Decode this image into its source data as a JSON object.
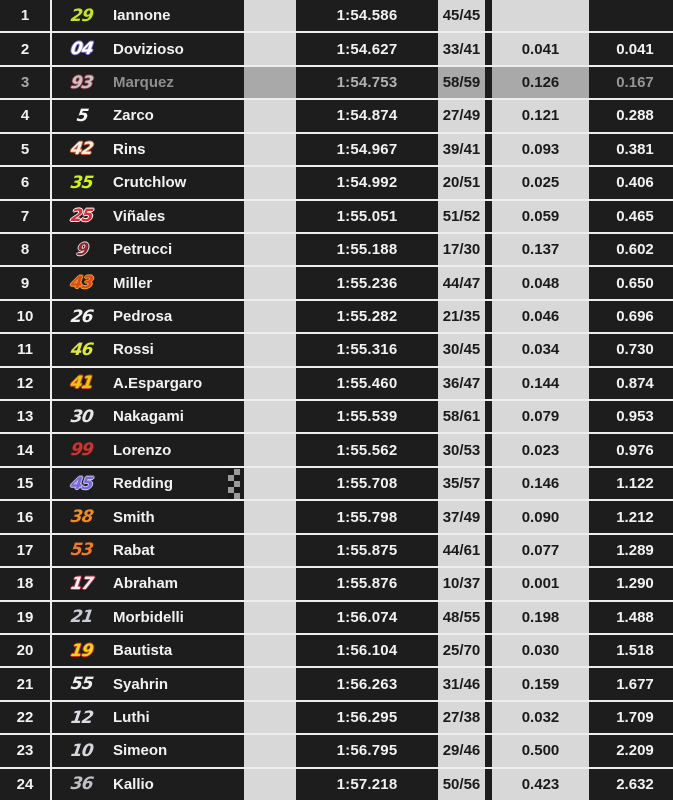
{
  "table": {
    "description": "MotoGP live timing classification",
    "columns": [
      "position",
      "number",
      "rider",
      "team_color",
      "best_time",
      "laps",
      "gap_previous",
      "gap_leader"
    ],
    "selected_rider": "Marquez",
    "colors": {
      "row_background": "#1d1d1d",
      "light_cell": "#d8d8d8",
      "selected_light_cell": "#a9a9a9",
      "row_border": "#ededed",
      "text_light": "#f2f2f2",
      "text_dark": "#1a1a1a",
      "selected_text": "#969696"
    },
    "icons": {
      "finish_flag": "checkered-flag-icon"
    },
    "rows": [
      {
        "pos": "1",
        "num": "29",
        "num_color": "#c8e22c",
        "num_outline": "",
        "rider": "Iannone",
        "time": "1:54.586",
        "laps": "45/45",
        "gap_prev": "",
        "gap_lead": "",
        "selected": false,
        "finish_flag": false
      },
      {
        "pos": "2",
        "num": "04",
        "num_color": "#ffffff",
        "num_outline": "#8a70e8",
        "rider": "Dovizioso",
        "time": "1:54.627",
        "laps": "33/41",
        "gap_prev": "0.041",
        "gap_lead": "0.041",
        "selected": false,
        "finish_flag": false
      },
      {
        "pos": "3",
        "num": "93",
        "num_color": "#c9c2c2",
        "num_outline": "#8d3a44",
        "rider": "Marquez",
        "time": "1:54.753",
        "laps": "58/59",
        "gap_prev": "0.126",
        "gap_lead": "0.167",
        "selected": true,
        "finish_flag": false
      },
      {
        "pos": "4",
        "num": "5",
        "num_color": "#f5f5f5",
        "num_outline": "",
        "rider": "Zarco",
        "time": "1:54.874",
        "laps": "27/49",
        "gap_prev": "0.121",
        "gap_lead": "0.288",
        "selected": false,
        "finish_flag": false
      },
      {
        "pos": "5",
        "num": "42",
        "num_color": "#f7ece4",
        "num_outline": "#c8562a",
        "rider": "Rins",
        "time": "1:54.967",
        "laps": "39/41",
        "gap_prev": "0.093",
        "gap_lead": "0.381",
        "selected": false,
        "finish_flag": false
      },
      {
        "pos": "6",
        "num": "35",
        "num_color": "#cdf312",
        "num_outline": "",
        "rider": "Crutchlow",
        "time": "1:54.992",
        "laps": "20/51",
        "gap_prev": "0.025",
        "gap_lead": "0.406",
        "selected": false,
        "finish_flag": false
      },
      {
        "pos": "7",
        "num": "25",
        "num_color": "#d93038",
        "num_outline": "#ffffff",
        "rider": "Viñales",
        "time": "1:55.051",
        "laps": "51/52",
        "gap_prev": "0.059",
        "gap_lead": "0.465",
        "selected": false,
        "finish_flag": false
      },
      {
        "pos": "8",
        "num": "9",
        "num_color": "#8f2430",
        "num_outline": "#e0e0e0",
        "rider": "Petrucci",
        "time": "1:55.188",
        "laps": "17/30",
        "gap_prev": "0.137",
        "gap_lead": "0.602",
        "selected": false,
        "finish_flag": false
      },
      {
        "pos": "9",
        "num": "43",
        "num_color": "#e0491f",
        "num_outline": "#f2a71c",
        "rider": "Miller",
        "time": "1:55.236",
        "laps": "44/47",
        "gap_prev": "0.048",
        "gap_lead": "0.650",
        "selected": false,
        "finish_flag": false
      },
      {
        "pos": "10",
        "num": "26",
        "num_color": "#f2f2f2",
        "num_outline": "",
        "rider": "Pedrosa",
        "time": "1:55.282",
        "laps": "21/35",
        "gap_prev": "0.046",
        "gap_lead": "0.696",
        "selected": false,
        "finish_flag": false
      },
      {
        "pos": "11",
        "num": "46",
        "num_color": "#dfe73b",
        "num_outline": "",
        "rider": "Rossi",
        "time": "1:55.316",
        "laps": "30/45",
        "gap_prev": "0.034",
        "gap_lead": "0.730",
        "selected": false,
        "finish_flag": false
      },
      {
        "pos": "12",
        "num": "41",
        "num_color": "#edc414",
        "num_outline": "#d04a28",
        "rider": "A.Espargaro",
        "time": "1:55.460",
        "laps": "36/47",
        "gap_prev": "0.144",
        "gap_lead": "0.874",
        "selected": false,
        "finish_flag": false
      },
      {
        "pos": "13",
        "num": "30",
        "num_color": "#e6e6e6",
        "num_outline": "",
        "rider": "Nakagami",
        "time": "1:55.539",
        "laps": "58/61",
        "gap_prev": "0.079",
        "gap_lead": "0.953",
        "selected": false,
        "finish_flag": false
      },
      {
        "pos": "14",
        "num": "99",
        "num_color": "#c03a34",
        "num_outline": "#4a1515",
        "rider": "Lorenzo",
        "time": "1:55.562",
        "laps": "30/53",
        "gap_prev": "0.023",
        "gap_lead": "0.976",
        "selected": false,
        "finish_flag": false
      },
      {
        "pos": "15",
        "num": "45",
        "num_color": "#7a68d9",
        "num_outline": "#c8c8e8",
        "rider": "Redding",
        "time": "1:55.708",
        "laps": "35/57",
        "gap_prev": "0.146",
        "gap_lead": "1.122",
        "selected": false,
        "finish_flag": true
      },
      {
        "pos": "16",
        "num": "38",
        "num_color": "#ef8d21",
        "num_outline": "",
        "rider": "Smith",
        "time": "1:55.798",
        "laps": "37/49",
        "gap_prev": "0.090",
        "gap_lead": "1.212",
        "selected": false,
        "finish_flag": false
      },
      {
        "pos": "17",
        "num": "53",
        "num_color": "#ef7b25",
        "num_outline": "",
        "rider": "Rabat",
        "time": "1:55.875",
        "laps": "44/61",
        "gap_prev": "0.077",
        "gap_lead": "1.289",
        "selected": false,
        "finish_flag": false
      },
      {
        "pos": "18",
        "num": "17",
        "num_color": "#eef0f5",
        "num_outline": "#c03448",
        "rider": "Abraham",
        "time": "1:55.876",
        "laps": "10/37",
        "gap_prev": "0.001",
        "gap_lead": "1.290",
        "selected": false,
        "finish_flag": false
      },
      {
        "pos": "19",
        "num": "21",
        "num_color": "#c9ccd4",
        "num_outline": "",
        "rider": "Morbidelli",
        "time": "1:56.074",
        "laps": "48/55",
        "gap_prev": "0.198",
        "gap_lead": "1.488",
        "selected": false,
        "finish_flag": false
      },
      {
        "pos": "20",
        "num": "19",
        "num_color": "#f3d313",
        "num_outline": "#c8302a",
        "rider": "Bautista",
        "time": "1:56.104",
        "laps": "25/70",
        "gap_prev": "0.030",
        "gap_lead": "1.518",
        "selected": false,
        "finish_flag": false
      },
      {
        "pos": "21",
        "num": "55",
        "num_color": "#ebebeb",
        "num_outline": "",
        "rider": "Syahrin",
        "time": "1:56.263",
        "laps": "31/46",
        "gap_prev": "0.159",
        "gap_lead": "1.677",
        "selected": false,
        "finish_flag": false
      },
      {
        "pos": "22",
        "num": "12",
        "num_color": "#dcdce4",
        "num_outline": "",
        "rider": "Luthi",
        "time": "1:56.295",
        "laps": "27/38",
        "gap_prev": "0.032",
        "gap_lead": "1.709",
        "selected": false,
        "finish_flag": false
      },
      {
        "pos": "23",
        "num": "10",
        "num_color": "#d6d6de",
        "num_outline": "",
        "rider": "Simeon",
        "time": "1:56.795",
        "laps": "29/46",
        "gap_prev": "0.500",
        "gap_lead": "2.209",
        "selected": false,
        "finish_flag": false
      },
      {
        "pos": "24",
        "num": "36",
        "num_color": "#bfbfc7",
        "num_outline": "",
        "rider": "Kallio",
        "time": "1:57.218",
        "laps": "50/56",
        "gap_prev": "0.423",
        "gap_lead": "2.632",
        "selected": false,
        "finish_flag": false
      }
    ]
  }
}
